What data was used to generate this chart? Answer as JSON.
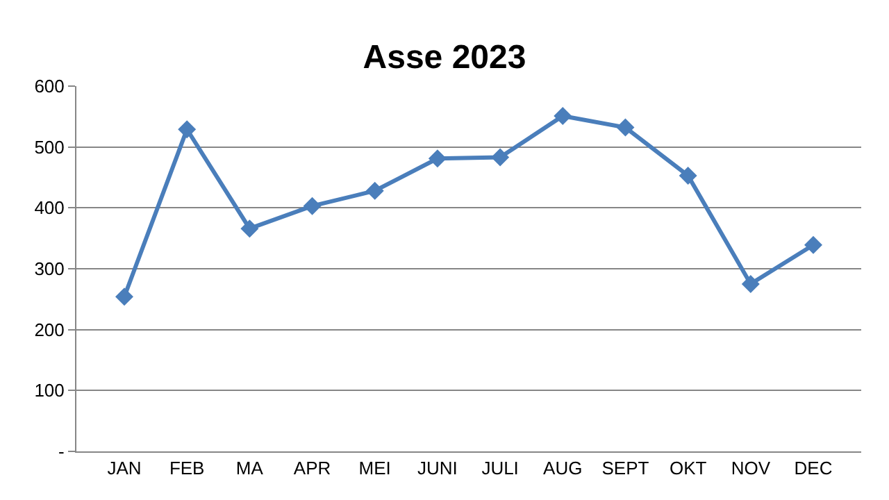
{
  "chart_data": {
    "type": "line",
    "title": "Asse 2023",
    "categories": [
      "JAN",
      "FEB",
      "MA",
      "APR",
      "MEI",
      "JUNI",
      "JULI",
      "AUG",
      "SEPT",
      "OKT",
      "NOV",
      "DEC"
    ],
    "series": [
      {
        "color": "#4a7ebb",
        "values": [
          254,
          529,
          366,
          403,
          428,
          481,
          483,
          551,
          532,
          453,
          275,
          339
        ]
      }
    ],
    "ylim": [
      0,
      600
    ],
    "yticks": [
      {
        "value": 0,
        "label": "-"
      },
      100,
      200,
      300,
      400,
      500,
      600
    ],
    "grid": "y",
    "marker": "diamond",
    "line_style": "solid"
  }
}
